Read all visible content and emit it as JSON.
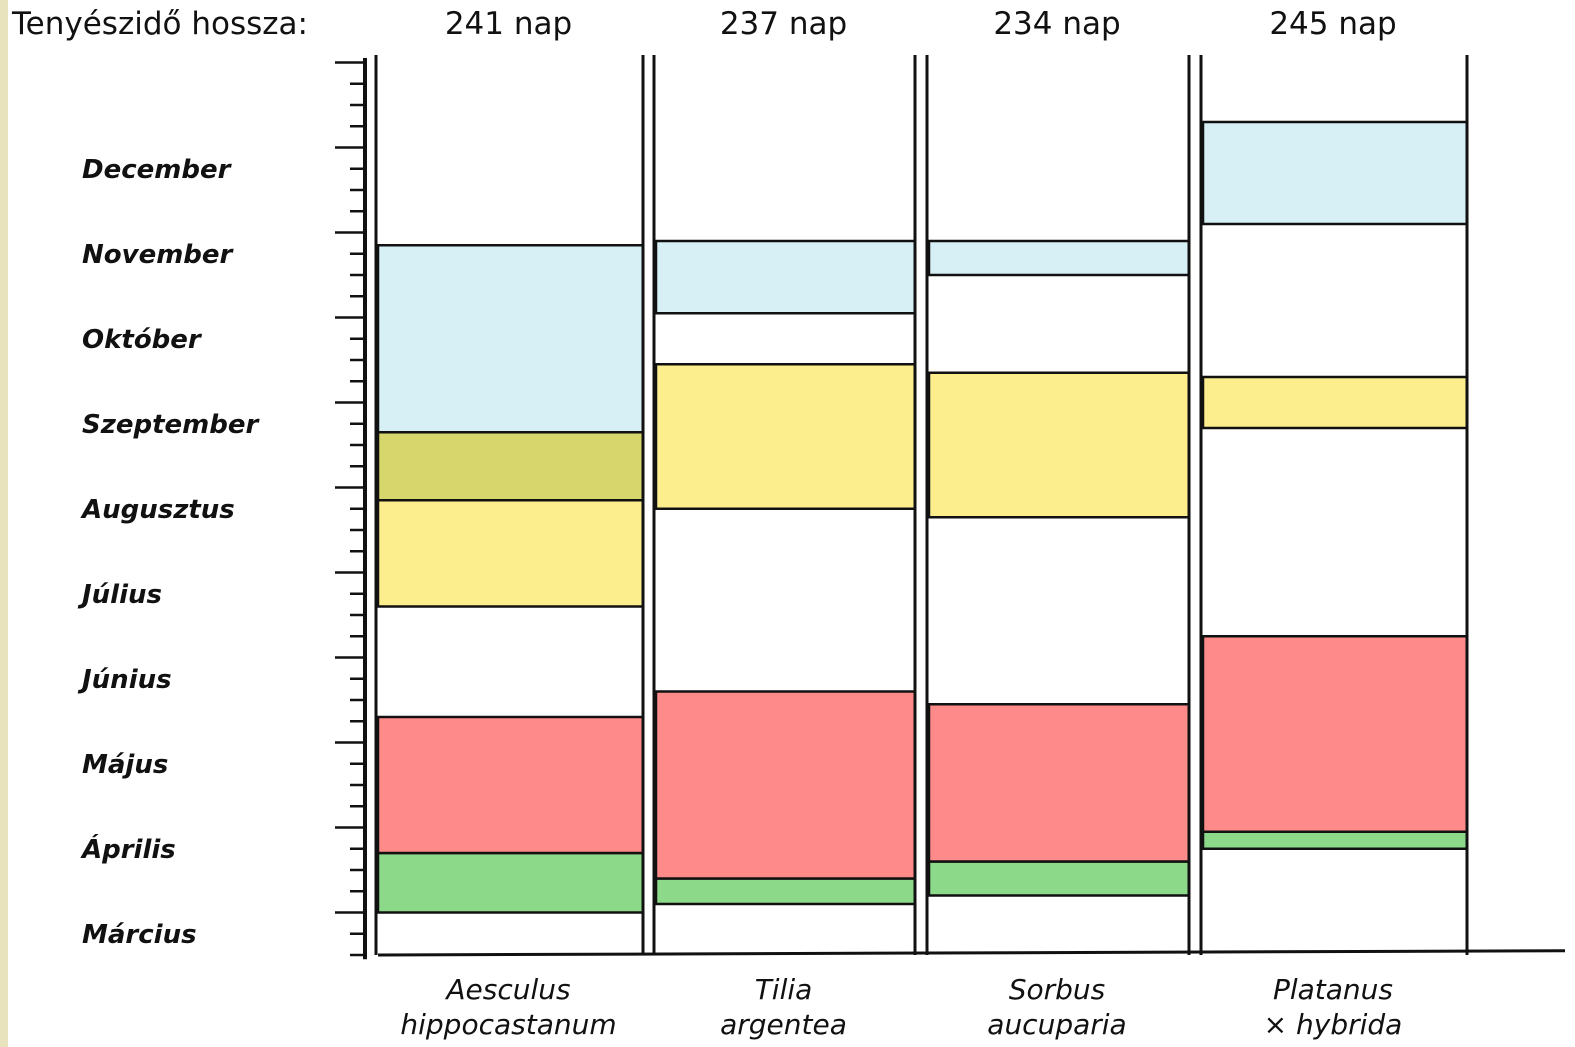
{
  "chart_data": {
    "type": "bar",
    "subtype": "floating-stacked-phenology",
    "header_label": "Tenyészidő hossza:",
    "months": [
      "Március",
      "Április",
      "Május",
      "Június",
      "Július",
      "Augusztus",
      "Szeptember",
      "Október",
      "November",
      "December"
    ],
    "y_range_months": [
      3,
      13.6
    ],
    "colors": {
      "green": "#8cd98a",
      "red": "#fe8a8a",
      "yellow": "#fdee8d",
      "olive": "#d6d66c",
      "lightblue": "#d6f0f6"
    },
    "series": [
      {
        "species": [
          "Aesculus",
          "hippocastanum"
        ],
        "season_length": "241 nap",
        "bands": [
          {
            "color": "green",
            "start": 3.5,
            "end": 4.2
          },
          {
            "color": "red",
            "start": 4.2,
            "end": 5.8
          },
          {
            "color": "yellow",
            "start": 7.1,
            "end": 8.35
          },
          {
            "color": "olive",
            "start": 8.35,
            "end": 9.15
          },
          {
            "color": "lightblue",
            "start": 9.15,
            "end": 11.35
          }
        ]
      },
      {
        "species": [
          "Tilia",
          "argentea"
        ],
        "season_length": "237 nap",
        "bands": [
          {
            "color": "green",
            "start": 3.6,
            "end": 3.9
          },
          {
            "color": "red",
            "start": 3.9,
            "end": 6.1
          },
          {
            "color": "yellow",
            "start": 8.25,
            "end": 9.95
          },
          {
            "color": "lightblue",
            "start": 10.55,
            "end": 11.4
          }
        ]
      },
      {
        "species": [
          "Sorbus",
          "aucuparia"
        ],
        "season_length": "234 nap",
        "bands": [
          {
            "color": "green",
            "start": 3.7,
            "end": 4.1
          },
          {
            "color": "red",
            "start": 4.1,
            "end": 5.95
          },
          {
            "color": "yellow",
            "start": 8.15,
            "end": 9.85
          },
          {
            "color": "lightblue",
            "start": 11.0,
            "end": 11.4
          }
        ]
      },
      {
        "species": [
          "Platanus",
          "× hybrida"
        ],
        "season_length": "245 nap",
        "bands": [
          {
            "color": "green",
            "start": 4.25,
            "end": 4.45
          },
          {
            "color": "red",
            "start": 4.45,
            "end": 6.75
          },
          {
            "color": "yellow",
            "start": 9.2,
            "end": 9.8
          },
          {
            "color": "lightblue",
            "start": 11.6,
            "end": 12.8
          }
        ]
      }
    ]
  }
}
